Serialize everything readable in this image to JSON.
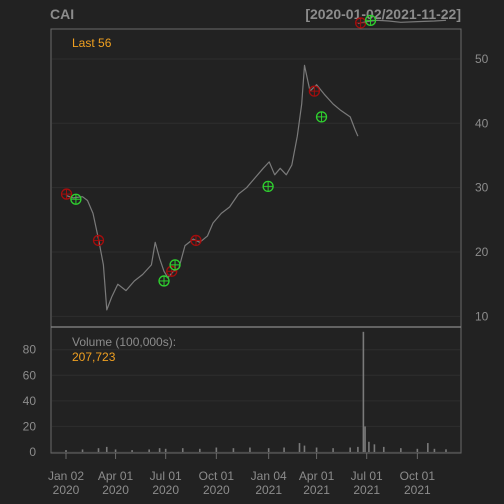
{
  "chart_data": [
    {
      "type": "line",
      "title": "CAI",
      "date_range_label": "[2020-01-02/2021-11-22]",
      "annotation": "Last 56",
      "x_range": [
        "2020-01-02",
        "2021-11-22"
      ],
      "ylim": [
        8.5,
        54.5
      ],
      "y_ticks": [
        10,
        20,
        30,
        40,
        50
      ],
      "y_tick_labels": [
        "10",
        "20",
        "30",
        "40",
        "50"
      ],
      "series": [
        {
          "values": [
            [
              "2020-01-02",
              28.8
            ],
            [
              "2020-01-15",
              28.4
            ],
            [
              "2020-02-01",
              28.6
            ],
            [
              "2020-02-10",
              28.0
            ],
            [
              "2020-02-20",
              26.0
            ],
            [
              "2020-03-01",
              22.0
            ],
            [
              "2020-03-10",
              18.0
            ],
            [
              "2020-03-16",
              11.0
            ],
            [
              "2020-03-25",
              13.0
            ],
            [
              "2020-04-05",
              15.0
            ],
            [
              "2020-04-20",
              14.0
            ],
            [
              "2020-05-05",
              15.5
            ],
            [
              "2020-05-20",
              16.5
            ],
            [
              "2020-06-05",
              18.0
            ],
            [
              "2020-06-12",
              21.5
            ],
            [
              "2020-06-20",
              19.0
            ],
            [
              "2020-06-28",
              17.0
            ],
            [
              "2020-07-05",
              16.0
            ],
            [
              "2020-07-15",
              17.0
            ],
            [
              "2020-07-25",
              17.5
            ],
            [
              "2020-08-05",
              21.0
            ],
            [
              "2020-08-20",
              22.0
            ],
            [
              "2020-09-01",
              21.5
            ],
            [
              "2020-09-15",
              22.5
            ],
            [
              "2020-09-25",
              24.5
            ],
            [
              "2020-10-10",
              26.0
            ],
            [
              "2020-10-25",
              27.0
            ],
            [
              "2020-11-10",
              29.0
            ],
            [
              "2020-11-25",
              30.0
            ],
            [
              "2020-12-10",
              31.5
            ],
            [
              "2020-12-25",
              33.0
            ],
            [
              "2021-01-05",
              34.0
            ],
            [
              "2021-01-15",
              32.0
            ],
            [
              "2021-01-25",
              33.0
            ],
            [
              "2021-02-05",
              32.0
            ],
            [
              "2021-02-15",
              33.5
            ],
            [
              "2021-02-25",
              38.0
            ],
            [
              "2021-03-05",
              43.0
            ],
            [
              "2021-03-10",
              49.0
            ],
            [
              "2021-03-20",
              45.0
            ],
            [
              "2021-04-01",
              46.0
            ],
            [
              "2021-04-15",
              44.5
            ],
            [
              "2021-05-01",
              43.0
            ],
            [
              "2021-05-15",
              42.0
            ],
            [
              "2021-06-01",
              41.0
            ],
            [
              "2021-06-10",
              39.0
            ],
            [
              "2021-06-15",
              38.0
            ]
          ]
        },
        {
          "values": [
            [
              "2021-06-15",
              55.5
            ],
            [
              "2021-07-01",
              55.8
            ],
            [
              "2021-07-20",
              56.0
            ],
            [
              "2021-08-10",
              55.9
            ],
            [
              "2021-09-01",
              55.7
            ],
            [
              "2021-10-01",
              55.8
            ],
            [
              "2021-11-01",
              55.9
            ],
            [
              "2021-11-22",
              56.0
            ]
          ]
        }
      ],
      "markers": [
        {
          "kind": "sell",
          "x": "2020-01-03",
          "y": 29.0
        },
        {
          "kind": "buy",
          "x": "2020-01-20",
          "y": 28.2
        },
        {
          "kind": "sell",
          "x": "2020-03-01",
          "y": 21.8
        },
        {
          "kind": "buy",
          "x": "2020-06-28",
          "y": 15.5
        },
        {
          "kind": "sell",
          "x": "2020-07-12",
          "y": 17.0
        },
        {
          "kind": "buy",
          "x": "2020-07-18",
          "y": 18.0
        },
        {
          "kind": "sell",
          "x": "2020-08-25",
          "y": 21.8
        },
        {
          "kind": "buy",
          "x": "2021-01-03",
          "y": 30.2
        },
        {
          "kind": "sell",
          "x": "2021-03-28",
          "y": 45.0
        },
        {
          "kind": "buy",
          "x": "2021-04-10",
          "y": 41.0
        },
        {
          "kind": "sell",
          "x": "2021-06-20",
          "y": 55.6
        },
        {
          "kind": "buy",
          "x": "2021-07-08",
          "y": 56.0
        }
      ],
      "colors": {
        "line": "#7a7a7a",
        "buy": "#2fd12f",
        "sell": "#a50d0d",
        "annotation": "#f0a020",
        "label": "#8c8c8c",
        "grid": "#2e2e2e",
        "frame": "#6a6a6a",
        "background": "#222222"
      }
    },
    {
      "type": "bar",
      "title": "Volume (100,000s):",
      "last_value_label": "207,723",
      "ylim": [
        0,
        97
      ],
      "y_ticks": [
        0,
        20,
        40,
        60,
        80
      ],
      "y_tick_labels": [
        "0",
        "20",
        "40",
        "60",
        "80"
      ],
      "x_ticks": [
        "2020-01-02",
        "2020-04-01",
        "2020-07-01",
        "2020-10-01",
        "2021-01-04",
        "2021-04-01",
        "2021-07-01",
        "2021-10-01"
      ],
      "x_tick_labels": [
        [
          "Jan 02",
          "2020"
        ],
        [
          "Apr 01",
          "2020"
        ],
        [
          "Jul 01",
          "2020"
        ],
        [
          "Oct 01",
          "2020"
        ],
        [
          "Jan 04",
          "2021"
        ],
        [
          "Apr 01",
          "2021"
        ],
        [
          "Jul 01",
          "2021"
        ],
        [
          "Oct 01",
          "2021"
        ]
      ],
      "series": [
        {
          "values": [
            [
              "2020-01-02",
              1.5
            ],
            [
              "2020-02-01",
              2.0
            ],
            [
              "2020-03-01",
              3.0
            ],
            [
              "2020-03-16",
              4.0
            ],
            [
              "2020-04-01",
              2.0
            ],
            [
              "2020-05-01",
              1.5
            ],
            [
              "2020-06-01",
              2.0
            ],
            [
              "2020-06-20",
              3.0
            ],
            [
              "2020-07-01",
              2.5
            ],
            [
              "2020-08-01",
              3.0
            ],
            [
              "2020-09-01",
              2.5
            ],
            [
              "2020-10-01",
              3.5
            ],
            [
              "2020-11-01",
              3.0
            ],
            [
              "2020-12-01",
              3.5
            ],
            [
              "2021-01-04",
              3.0
            ],
            [
              "2021-02-01",
              3.5
            ],
            [
              "2021-03-01",
              7.0
            ],
            [
              "2021-03-10",
              5.0
            ],
            [
              "2021-04-01",
              3.5
            ],
            [
              "2021-05-01",
              3.0
            ],
            [
              "2021-06-01",
              3.5
            ],
            [
              "2021-06-15",
              4.0
            ],
            [
              "2021-06-25",
              94.0
            ],
            [
              "2021-06-28",
              20.0
            ],
            [
              "2021-07-05",
              8.0
            ],
            [
              "2021-07-15",
              6.0
            ],
            [
              "2021-08-01",
              4.0
            ],
            [
              "2021-09-01",
              3.0
            ],
            [
              "2021-10-01",
              2.5
            ],
            [
              "2021-10-20",
              7.0
            ],
            [
              "2021-11-01",
              2.5
            ],
            [
              "2021-11-22",
              2.1
            ]
          ]
        }
      ],
      "colors": {
        "bar": "#7a7a7a",
        "annotation": "#f0a020",
        "label": "#8c8c8c",
        "grid": "#2e2e2e",
        "frame": "#6a6a6a"
      }
    }
  ]
}
